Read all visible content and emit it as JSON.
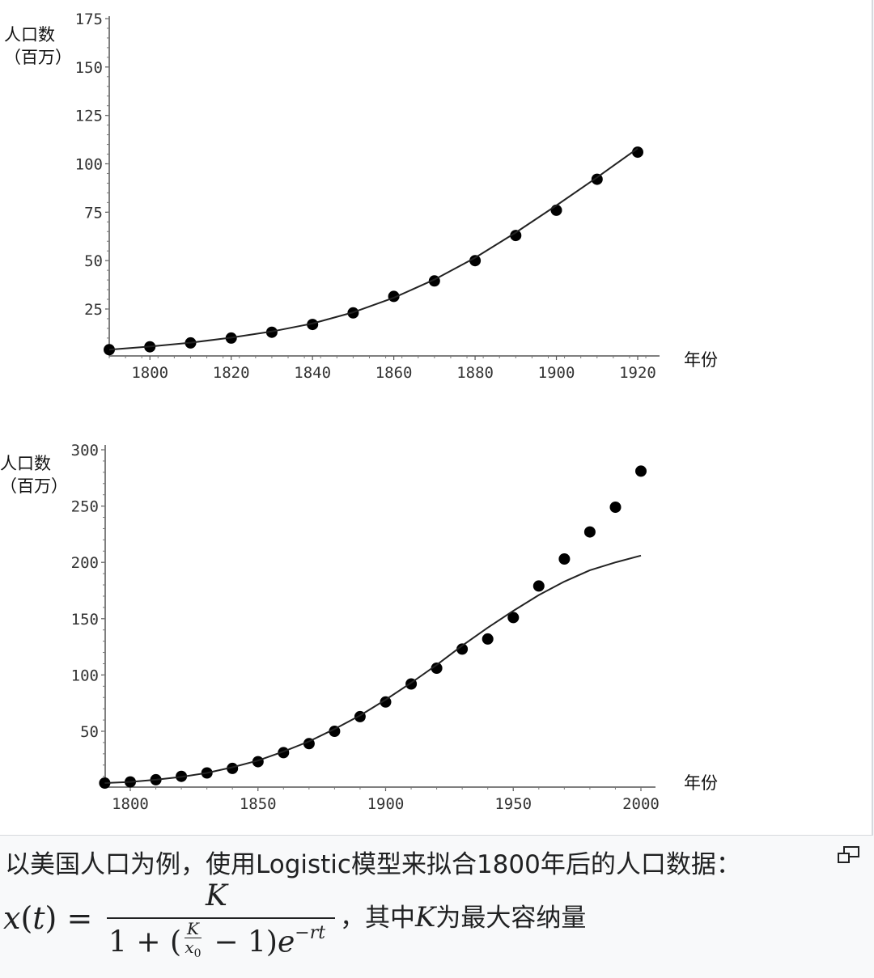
{
  "chart_data": [
    {
      "type": "scatter",
      "ylabel_lines": [
        "人口数",
        "（百万）"
      ],
      "xlabel": "年份",
      "xlim": [
        1790,
        1925
      ],
      "ylim": [
        0,
        175
      ],
      "xticks": [
        1800,
        1820,
        1840,
        1860,
        1880,
        1900,
        1920
      ],
      "yticks": [
        25,
        50,
        75,
        100,
        125,
        150,
        175
      ],
      "series": [
        {
          "kind": "points",
          "x": [
            1790,
            1800,
            1810,
            1820,
            1830,
            1840,
            1850,
            1860,
            1870,
            1880,
            1890,
            1900,
            1910,
            1920
          ],
          "y": [
            4,
            5.5,
            7.5,
            10,
            13,
            17,
            23,
            31.5,
            39.5,
            50,
            63,
            76,
            92,
            106
          ]
        },
        {
          "kind": "line",
          "x": [
            1790,
            1800,
            1810,
            1820,
            1830,
            1840,
            1850,
            1860,
            1870,
            1880,
            1890,
            1900,
            1910,
            1920
          ],
          "y": [
            4,
            5.6,
            7.6,
            10.2,
            13.4,
            17.5,
            23.3,
            30.8,
            40.2,
            51.5,
            64.5,
            78.5,
            93,
            108
          ]
        }
      ]
    },
    {
      "type": "scatter",
      "ylabel_lines": [
        "人口数",
        "（百万）"
      ],
      "xlabel": "年份",
      "xlim": [
        1790,
        2010
      ],
      "ylim": [
        0,
        300
      ],
      "xticks": [
        1800,
        1850,
        1900,
        1950,
        2000
      ],
      "yticks": [
        50,
        100,
        150,
        200,
        250,
        300
      ],
      "series": [
        {
          "kind": "points",
          "x": [
            1790,
            1800,
            1810,
            1820,
            1830,
            1840,
            1850,
            1860,
            1870,
            1880,
            1890,
            1900,
            1910,
            1920,
            1930,
            1940,
            1950,
            1960,
            1970,
            1980,
            1990,
            2000
          ],
          "y": [
            4,
            5,
            7,
            10,
            13,
            17,
            23,
            31,
            39,
            50,
            63,
            76,
            92,
            106,
            123,
            132,
            151,
            179,
            203,
            227,
            249,
            281
          ]
        },
        {
          "kind": "line",
          "x": [
            1790,
            1800,
            1810,
            1820,
            1830,
            1840,
            1850,
            1860,
            1870,
            1880,
            1890,
            1900,
            1910,
            1920,
            1930,
            1940,
            1950,
            1960,
            1970,
            1980,
            1990,
            2000
          ],
          "y": [
            4,
            5,
            7,
            9.5,
            13,
            18,
            24,
            32,
            41,
            52,
            64,
            78,
            93,
            109,
            126,
            142,
            157,
            171,
            183,
            193,
            200,
            206
          ]
        }
      ]
    }
  ],
  "caption": {
    "line1": "以美国人口为例，使用Logistic模型来拟合1800年后的人口数据：",
    "formula_suffix_before": "，其中",
    "formula_var": "K",
    "formula_suffix_after": "为最大容纳量"
  },
  "icons": {
    "enlarge": "enlarge-icon"
  },
  "colors": {
    "marks": "#000000",
    "axis": "#333333",
    "caption_bg": "#f8f9fa"
  }
}
